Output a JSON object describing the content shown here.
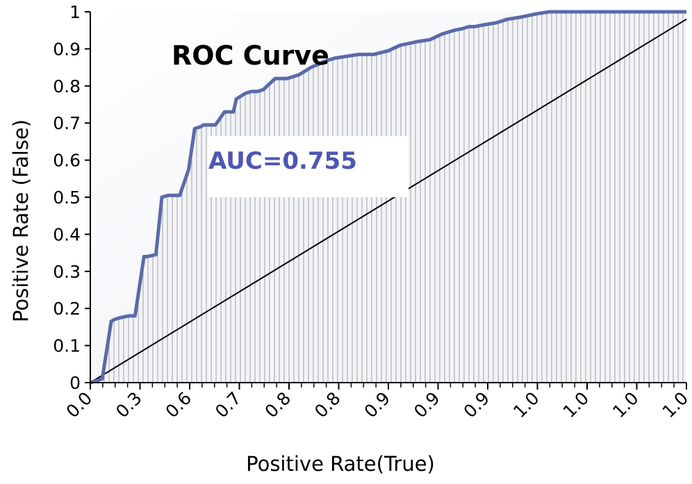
{
  "colors": {
    "roc_line": "#5b6aa8",
    "auc_text": "#4e56b4",
    "fill_stripes": "#a9a9a9",
    "fill_bg": "#f2f4f8",
    "axis": "#000000",
    "diagonal": "#000000"
  },
  "chart_data": {
    "type": "area",
    "title": "ROC Curve",
    "annotation": "AUC=0.755",
    "xlabel": "Positive Rate(True)",
    "ylabel": "Positive Rate (False)",
    "xlim": [
      0,
      1
    ],
    "ylim": [
      0,
      1
    ],
    "x_tick_labels": [
      "0.0",
      "0.3",
      "0.6",
      "0.7",
      "0.8",
      "0.8",
      "0.9",
      "0.9",
      "0.9",
      "1.0",
      "1.0",
      "1.0",
      "1.0"
    ],
    "y_ticks": [
      0,
      0.1,
      0.2,
      0.3,
      0.4,
      0.5,
      0.6,
      0.7,
      0.8,
      0.9,
      1
    ],
    "y_tick_labels": [
      "0",
      "0.1",
      "0.2",
      "0.3",
      "0.4",
      "0.5",
      "0.6",
      "0.7",
      "0.8",
      "0.9",
      "1"
    ],
    "grid": false,
    "series": [
      {
        "x": [
          0.0,
          0.02,
          0.035,
          0.04,
          0.05,
          0.065,
          0.075,
          0.09,
          0.095,
          0.11,
          0.12,
          0.13,
          0.15,
          0.165,
          0.175,
          0.185,
          0.19,
          0.21,
          0.225,
          0.24,
          0.245,
          0.26,
          0.27,
          0.28,
          0.29,
          0.3,
          0.31,
          0.33,
          0.35,
          0.36,
          0.37,
          0.385,
          0.39,
          0.41,
          0.43,
          0.45,
          0.46,
          0.475,
          0.5,
          0.52,
          0.535,
          0.55,
          0.57,
          0.59,
          0.61,
          0.625,
          0.635,
          0.645,
          0.66,
          0.68,
          0.69,
          0.7,
          0.72,
          0.735,
          0.75,
          0.77,
          0.79,
          0.81,
          0.83,
          0.85,
          0.86,
          1.0
        ],
        "y": [
          0.0,
          0.01,
          0.165,
          0.17,
          0.175,
          0.18,
          0.18,
          0.34,
          0.34,
          0.345,
          0.5,
          0.505,
          0.505,
          0.575,
          0.685,
          0.69,
          0.695,
          0.695,
          0.73,
          0.73,
          0.765,
          0.78,
          0.785,
          0.785,
          0.79,
          0.805,
          0.82,
          0.82,
          0.83,
          0.84,
          0.85,
          0.86,
          0.865,
          0.875,
          0.88,
          0.885,
          0.885,
          0.885,
          0.895,
          0.91,
          0.915,
          0.92,
          0.925,
          0.94,
          0.95,
          0.955,
          0.96,
          0.96,
          0.965,
          0.97,
          0.975,
          0.98,
          0.985,
          0.99,
          0.995,
          1.0,
          1.0,
          1.0,
          1.0,
          1.0,
          1.0,
          1.0
        ]
      }
    ],
    "diagonal": {
      "x": [
        0,
        1
      ],
      "y": [
        0,
        0.98
      ]
    }
  }
}
